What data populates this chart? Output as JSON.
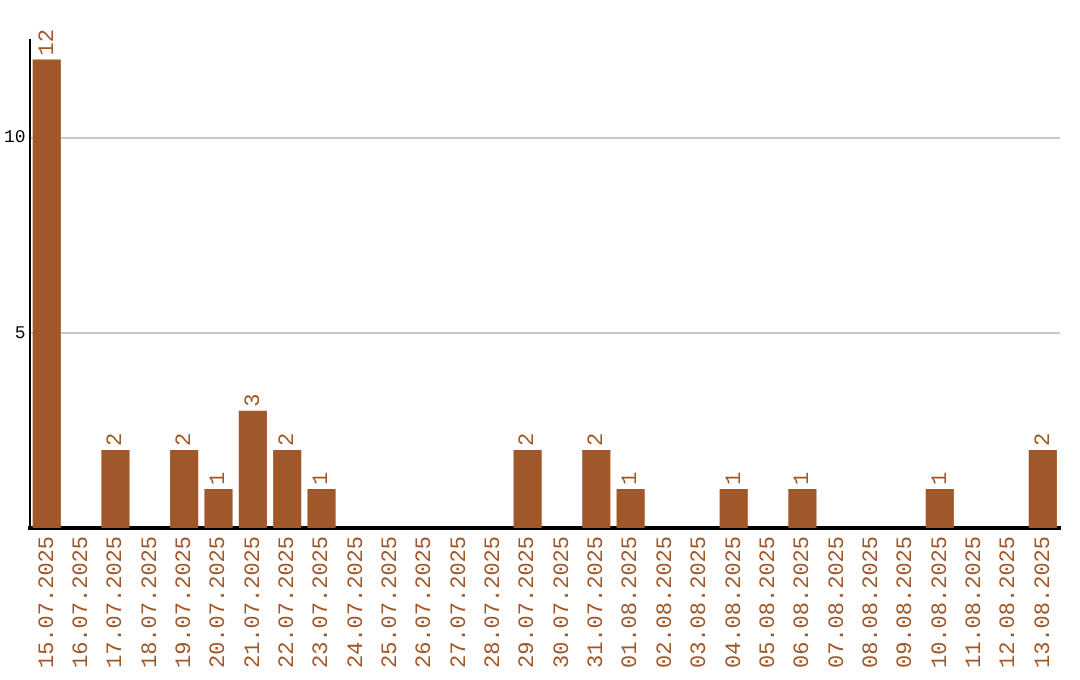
{
  "chart_data": {
    "type": "bar",
    "categories": [
      "15.07.2025",
      "16.07.2025",
      "17.07.2025",
      "18.07.2025",
      "19.07.2025",
      "20.07.2025",
      "21.07.2025",
      "22.07.2025",
      "23.07.2025",
      "24.07.2025",
      "25.07.2025",
      "26.07.2025",
      "27.07.2025",
      "28.07.2025",
      "29.07.2025",
      "30.07.2025",
      "31.07.2025",
      "01.08.2025",
      "02.08.2025",
      "03.08.2025",
      "04.08.2025",
      "05.08.2025",
      "06.08.2025",
      "07.08.2025",
      "08.08.2025",
      "09.08.2025",
      "10.08.2025",
      "11.08.2025",
      "12.08.2025",
      "13.08.2025"
    ],
    "values": [
      12,
      0,
      2,
      0,
      2,
      1,
      3,
      2,
      1,
      0,
      0,
      0,
      0,
      0,
      2,
      0,
      2,
      1,
      0,
      0,
      1,
      0,
      1,
      0,
      0,
      0,
      1,
      0,
      0,
      2
    ],
    "value_labels": [
      "12",
      null,
      "2",
      null,
      "2",
      "1",
      "3",
      "2",
      "1",
      null,
      null,
      null,
      null,
      null,
      "2",
      null,
      "2",
      "1",
      null,
      null,
      "1",
      null,
      "1",
      null,
      null,
      null,
      "1",
      null,
      null,
      "2"
    ],
    "color": "#a0572a",
    "ylim": [
      0,
      12.5
    ],
    "yticks": [
      5,
      10
    ],
    "grid": "y"
  }
}
